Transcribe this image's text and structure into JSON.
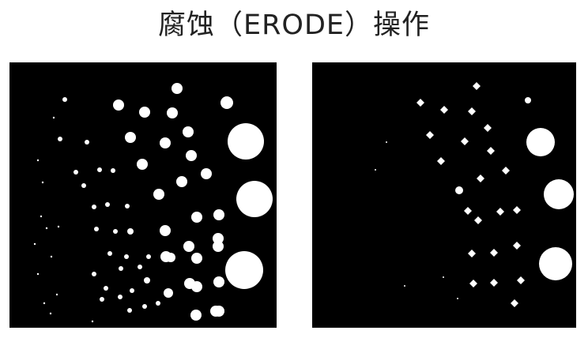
{
  "title": "腐蚀（ERODE）操作",
  "images": [
    {
      "name": "original-binary-image",
      "background": "#000000",
      "foreground": "#ffffff"
    },
    {
      "name": "eroded-binary-image",
      "background": "#000000",
      "foreground": "#ffffff"
    }
  ]
}
